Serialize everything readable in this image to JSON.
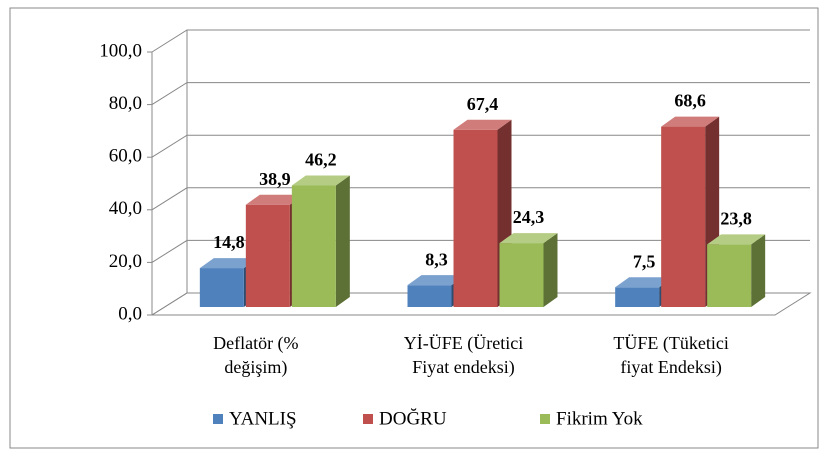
{
  "chart_data": {
    "type": "bar3d",
    "categories": [
      [
        "Deflatör (%",
        "değişim)"
      ],
      [
        "Yİ-ÜFE (Üretici",
        "Fiyat endeksi)"
      ],
      [
        "TÜFE (Tüketici",
        "fiyat Endeksi)"
      ]
    ],
    "series": [
      {
        "name": "YANLIŞ",
        "color": "#4f81bd",
        "values": [
          14.8,
          8.3,
          7.5
        ],
        "value_labels": [
          "14,8",
          "8,3",
          "7,5"
        ]
      },
      {
        "name": "DOĞRU",
        "color": "#c0504d",
        "values": [
          38.9,
          67.4,
          68.6
        ],
        "value_labels": [
          "38,9",
          "67,4",
          "68,6"
        ]
      },
      {
        "name": "Fikrim Yok",
        "color": "#9bbb59",
        "values": [
          46.2,
          24.3,
          23.8
        ],
        "value_labels": [
          "46,2",
          "24,3",
          "23,8"
        ]
      }
    ],
    "ylim": [
      0,
      100
    ],
    "yticks": [
      {
        "value": 0,
        "label": "0,0"
      },
      {
        "value": 20,
        "label": "20,0"
      },
      {
        "value": 40,
        "label": "40,0"
      },
      {
        "value": 60,
        "label": "60,0"
      },
      {
        "value": 80,
        "label": "80,0"
      },
      {
        "value": 100,
        "label": "100,0"
      }
    ],
    "grid": true,
    "legend": "bottom"
  }
}
